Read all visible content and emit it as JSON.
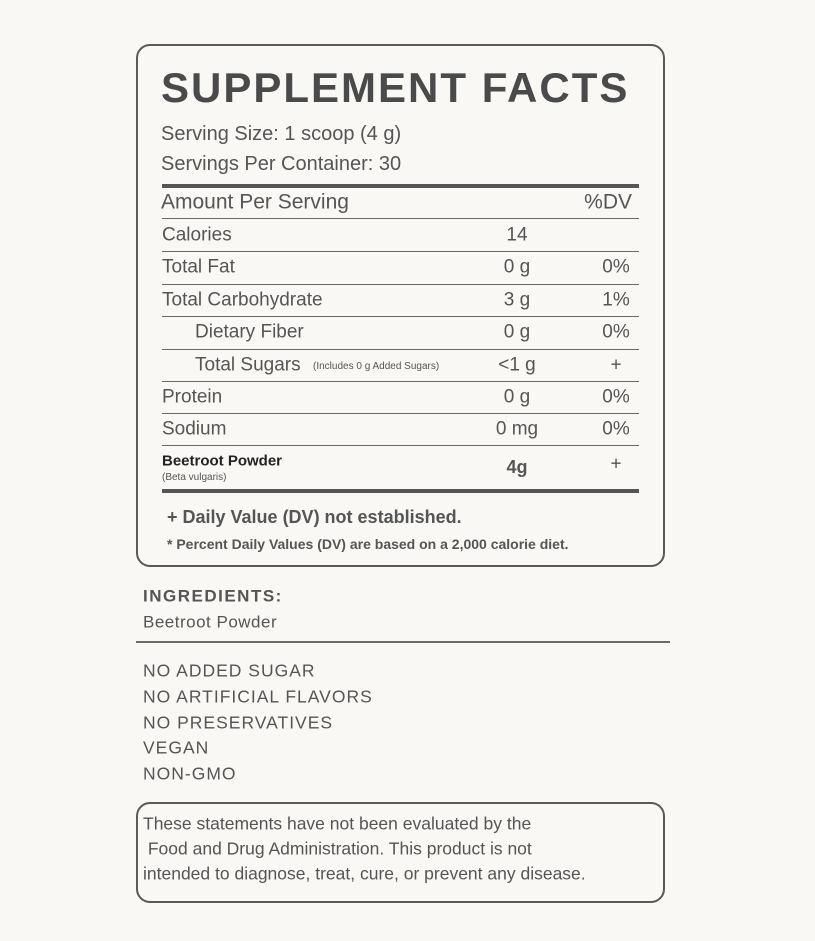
{
  "facts": {
    "title": "SUPPLEMENT FACTS",
    "serving_size": "Serving Size: 1 scoop (4 g)",
    "servings_per_container": "Servings Per Container: 30",
    "header": [
      "Amount Per Serving",
      "%DV"
    ],
    "rows": [
      {
        "name": "Calories",
        "amount": "14"
      },
      {
        "name": "Total Fat",
        "amount": "0 g",
        "dv": "0%"
      },
      {
        "name": "Total Carbohydrate",
        "amount": "3 g",
        "dv": "1%"
      },
      {
        "name": "Dietary Fiber",
        "amount": "0 g",
        "dv": "0%"
      },
      {
        "name": "Total Sugars",
        "note": "(Includes 0 g Added Sugars)",
        "amount": "<1 g",
        "dv": "+"
      },
      {
        "name": "Protein",
        "amount": "0 g",
        "dv": "0%"
      },
      {
        "name": "Sodium",
        "amount": "0 mg",
        "dv": "0%"
      },
      {
        "name": "Beetroot Powder",
        "note": "(Beta vulgaris)",
        "amount": "4g",
        "dv": "+"
      }
    ],
    "footnotes": [
      "+ Daily Value (DV) not established.",
      "* Percent Daily Values (DV) are based on a 2,000 calorie diet."
    ]
  },
  "ingredients": {
    "heading": "INGREDIENTS:",
    "text": "Beetroot Powder"
  },
  "claims": [
    "NO ADDED SUGAR",
    "NO ARTIFICIAL FLAVORS",
    "NO PRESERVATIVES",
    "VEGAN",
    "NON-GMO"
  ],
  "disclaimer": [
    "These statements have not been evaluated by the",
    " Food and Drug Administration. This product is not",
    "intended to diagnose, treat, cure, or prevent any disease."
  ]
}
